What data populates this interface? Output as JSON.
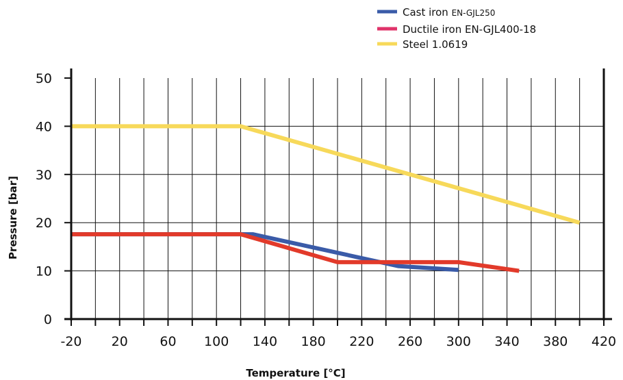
{
  "chart_data": {
    "type": "line",
    "xlabel": "Temperature [°C]",
    "ylabel": "Pressure [bar]",
    "xlim": [
      -20,
      420
    ],
    "ylim": [
      0,
      50
    ],
    "x_ticks": [
      -20,
      20,
      60,
      100,
      140,
      180,
      220,
      260,
      300,
      340,
      380,
      420
    ],
    "x_tick_labels": [
      "-20",
      "20",
      "60",
      "100",
      "140",
      "180",
      "220",
      "260",
      "300",
      "340",
      "380",
      "420"
    ],
    "y_ticks": [
      0,
      10,
      20,
      30,
      40,
      50
    ],
    "y_tick_labels": [
      "0",
      "10",
      "20",
      "30",
      "40",
      "50"
    ],
    "grid": true,
    "legend_position": "top-right",
    "series": [
      {
        "name": "Cast iron",
        "name_suffix": "EN-GJL250",
        "color": "#3a5ba8",
        "x": [
          -20,
          130,
          250,
          300
        ],
        "y": [
          17.6,
          17.6,
          11,
          10.2
        ]
      },
      {
        "name": "Ductile iron",
        "name_suffix": "EN-GJL400-18",
        "color": "#e23a2a",
        "legend_color": "#e0336a",
        "x": [
          -20,
          120,
          200,
          300,
          350
        ],
        "y": [
          17.6,
          17.6,
          11.8,
          11.8,
          10
        ]
      },
      {
        "name": "Steel",
        "name_suffix": "1.0619",
        "color": "#f7d95a",
        "x": [
          -20,
          120,
          400
        ],
        "y": [
          40,
          40,
          20
        ]
      }
    ]
  }
}
